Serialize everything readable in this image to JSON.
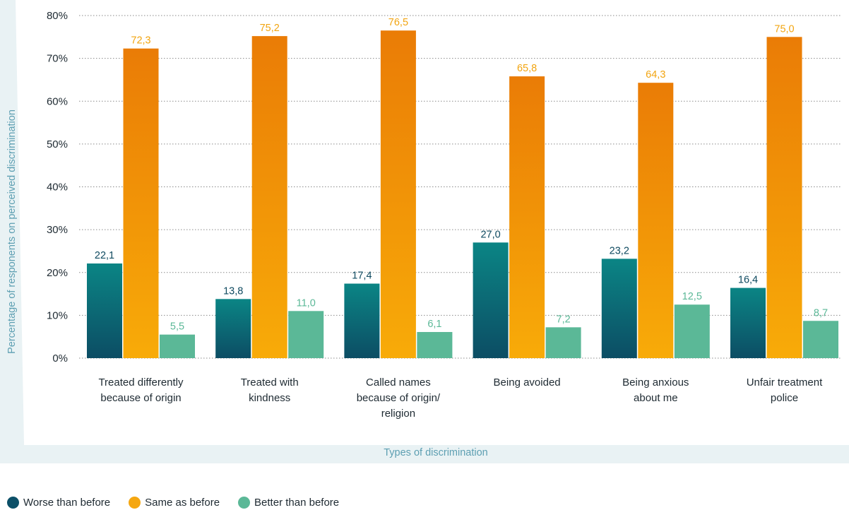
{
  "chart_data": {
    "type": "bar",
    "xlabel": "Types of discrimination",
    "ylabel": "Percentage of responents on perceived discrimination",
    "ylim": [
      0,
      80
    ],
    "yticks": [
      "0%",
      "10%",
      "20%",
      "30%",
      "40%",
      "50%",
      "60%",
      "70%",
      "80%"
    ],
    "grid": true,
    "categories": [
      [
        "Treated differently",
        "because of origin"
      ],
      [
        "Treated with",
        "kindness"
      ],
      [
        "Called names",
        "because of origin/",
        "religion"
      ],
      [
        "Being avoided"
      ],
      [
        "Being anxious",
        "about me"
      ],
      [
        "Unfair treatment",
        "police"
      ]
    ],
    "series": [
      {
        "name": "Worse than before",
        "values": [
          22.1,
          13.8,
          17.4,
          27.0,
          23.2,
          16.4
        ],
        "labels": [
          "22,1",
          "13,8",
          "17,4",
          "27,0",
          "23,2",
          "16,4"
        ],
        "color_top": "#0b8585",
        "color_bottom": "#0c4d64",
        "label_color": "#0f4a60"
      },
      {
        "name": "Same as before",
        "values": [
          72.3,
          75.2,
          76.5,
          65.8,
          64.3,
          75.0
        ],
        "labels": [
          "72,3",
          "75,2",
          "76,5",
          "65,8",
          "64,3",
          "75,0"
        ],
        "color_top": "#ea7c06",
        "color_bottom": "#f8ab08",
        "label_color": "#f2a511"
      },
      {
        "name": "Better than before",
        "values": [
          5.5,
          11.0,
          6.1,
          7.2,
          12.5,
          8.7
        ],
        "labels": [
          "5,5",
          "11,0",
          "6,1",
          "7,2",
          "12,5",
          "8,7"
        ],
        "color_top": "#5bb897",
        "color_bottom": "#5bb897",
        "label_color": "#5bb897"
      }
    ],
    "legend_position": "bottom-left"
  },
  "colors": {
    "axis_band": "#e9f2f4",
    "axis_title": "#5d9fb2",
    "grid": "#8a8a8a"
  }
}
